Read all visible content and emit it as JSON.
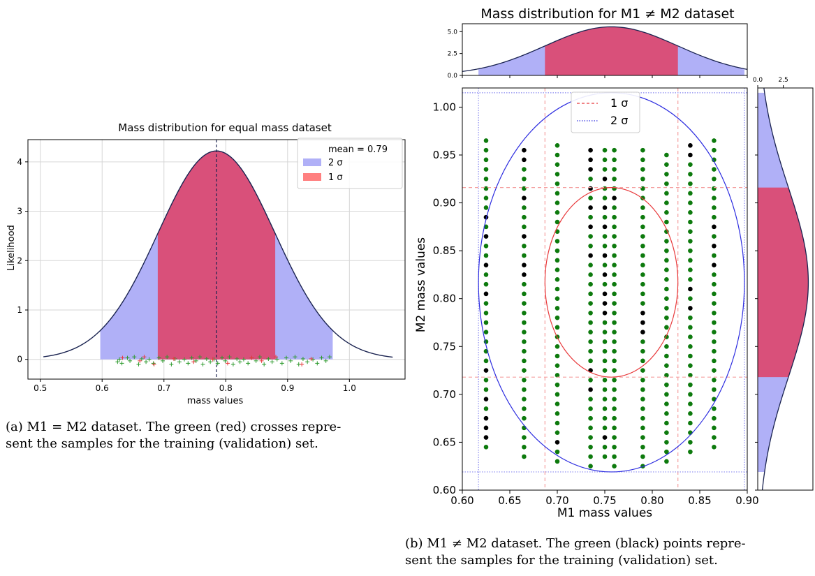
{
  "figure_a": {
    "caption": [
      "(a) M1 = M2 dataset. The green (red) crosses repre-",
      "sent the samples for the training (validation) set."
    ]
  },
  "figure_b": {
    "caption": [
      "(b) M1 ≠ M2 dataset. The green (black) points repre-",
      "sent the samples for the training (validation) set."
    ]
  },
  "chart_data": [
    {
      "type": "area",
      "title": "Mass distribution for equal mass dataset",
      "xlabel": "mass values",
      "ylabel": "Likelihood",
      "xlim": [
        0.48,
        1.09
      ],
      "ylim": [
        -0.4,
        4.45
      ],
      "xticks": [
        0.5,
        0.6,
        0.7,
        0.8,
        0.9,
        1.0
      ],
      "yticks": [
        0,
        1,
        2,
        3,
        4
      ],
      "mean": 0.785,
      "std": 0.0945,
      "curve_range": [
        0.505,
        1.07
      ],
      "sigma1_range": [
        0.69,
        0.88
      ],
      "sigma2_range": [
        0.597,
        0.973
      ],
      "legend": {
        "placement": "top-right",
        "title": "mean = 0.79",
        "entries": [
          "2 σ",
          "1 σ"
        ]
      },
      "colors": {
        "curve": "#1a2350",
        "sigma1": "#d9507a",
        "sigma2": "#b0b0f7",
        "mean_line": "#1a2350",
        "train": "#2c9a2c",
        "val": "#e8383a"
      },
      "grid": true,
      "train_x": [
        0.625,
        0.628,
        0.632,
        0.641,
        0.645,
        0.652,
        0.659,
        0.664,
        0.671,
        0.676,
        0.683,
        0.692,
        0.698,
        0.705,
        0.712,
        0.718,
        0.725,
        0.733,
        0.739,
        0.745,
        0.752,
        0.758,
        0.763,
        0.769,
        0.775,
        0.781,
        0.787,
        0.794,
        0.799,
        0.806,
        0.812,
        0.818,
        0.823,
        0.829,
        0.836,
        0.842,
        0.849,
        0.855,
        0.862,
        0.869,
        0.875,
        0.883,
        0.891,
        0.898,
        0.905,
        0.912,
        0.918,
        0.925,
        0.932,
        0.941,
        0.948,
        0.955,
        0.962,
        0.968
      ],
      "val_x": [
        0.633,
        0.661,
        0.668,
        0.684,
        0.716,
        0.748,
        0.779,
        0.803,
        0.842,
        0.858,
        0.881,
        0.923,
        0.938
      ],
      "y_markers": [
        -0.05,
        0.0,
        -0.08,
        0.03,
        -0.03,
        0.05,
        -0.1,
        0.01
      ]
    },
    {
      "type": "scatter",
      "title": "Mass distribution for M1 ≠ M2 dataset",
      "xlabel": "M1 mass values",
      "ylabel": "M2 mass values",
      "xlim": [
        0.6,
        0.9
      ],
      "ylim": [
        0.6,
        1.02
      ],
      "xticks": [
        0.6,
        0.65,
        0.7,
        0.75,
        0.8,
        0.85,
        0.9
      ],
      "yticks": [
        0.6,
        0.65,
        0.7,
        0.75,
        0.8,
        0.85,
        0.9,
        0.95,
        1.0
      ],
      "xtick_labels": [
        "0.60",
        "0.65",
        "0.70",
        "0.75",
        "0.80",
        "0.85",
        "0.90"
      ],
      "ytick_labels": [
        "0.60",
        "0.65",
        "0.70",
        "0.75",
        "0.80",
        "0.85",
        "0.90",
        "0.95",
        "1.00"
      ],
      "center": [
        0.757,
        0.817
      ],
      "sigma1": {
        "x": [
          0.687,
          0.827
        ],
        "y": [
          0.718,
          0.916
        ]
      },
      "sigma2": {
        "x": [
          0.617,
          0.897
        ],
        "y": [
          0.619,
          1.015
        ]
      },
      "legend": {
        "placement": "top-center",
        "entries": [
          "1 σ",
          "2 σ"
        ]
      },
      "colors": {
        "sigma1": "#e8383a",
        "sigma2": "#2d2de0",
        "train": "#0d7a0d",
        "val": "#000000"
      },
      "columns": [
        {
          "x": 0.625,
          "y_start": 0.645,
          "y_end": 0.965,
          "val_y": [
            0.655,
            0.665,
            0.675,
            0.695,
            0.725,
            0.805,
            0.835,
            0.865,
            0.885
          ]
        },
        {
          "x": 0.665,
          "y_start": 0.635,
          "y_end": 0.955,
          "val_y": [
            0.825,
            0.835,
            0.865,
            0.905,
            0.945,
            0.955
          ]
        },
        {
          "x": 0.7,
          "y_start": 0.63,
          "y_end": 0.96,
          "val_y": [
            0.65,
            0.765,
            0.775,
            0.785,
            0.825,
            0.835,
            0.845,
            0.855,
            0.865,
            0.915
          ]
        },
        {
          "x": 0.735,
          "y_start": 0.625,
          "y_end": 0.955,
          "val_y": [
            0.705,
            0.725,
            0.845,
            0.875,
            0.895,
            0.915,
            0.935,
            0.945,
            0.955
          ]
        },
        {
          "x": 0.75,
          "y_start": 0.635,
          "y_end": 0.96,
          "val_y": [
            0.655,
            0.69,
            0.7,
            0.72,
            0.785,
            0.795,
            0.805,
            0.825,
            0.845,
            0.875,
            0.895,
            0.925,
            0.95
          ]
        },
        {
          "x": 0.76,
          "y_start": 0.625,
          "y_end": 0.955,
          "val_y": [
            0.64,
            0.68,
            0.72,
            0.76,
            0.79,
            0.85,
            0.88,
            0.905,
            0.92
          ]
        },
        {
          "x": 0.79,
          "y_start": 0.625,
          "y_end": 0.955,
          "val_y": [
            0.765,
            0.775,
            0.785
          ]
        },
        {
          "x": 0.815,
          "y_start": 0.63,
          "y_end": 0.955,
          "val_y": []
        },
        {
          "x": 0.84,
          "y_start": 0.64,
          "y_end": 0.96,
          "val_y": [
            0.81,
            0.79,
            0.915,
            0.925,
            0.935,
            0.95,
            0.96
          ]
        },
        {
          "x": 0.865,
          "y_start": 0.645,
          "y_end": 0.965,
          "val_y": [
            0.835,
            0.855,
            0.875
          ]
        }
      ],
      "col_step": 0.01
    }
  ]
}
